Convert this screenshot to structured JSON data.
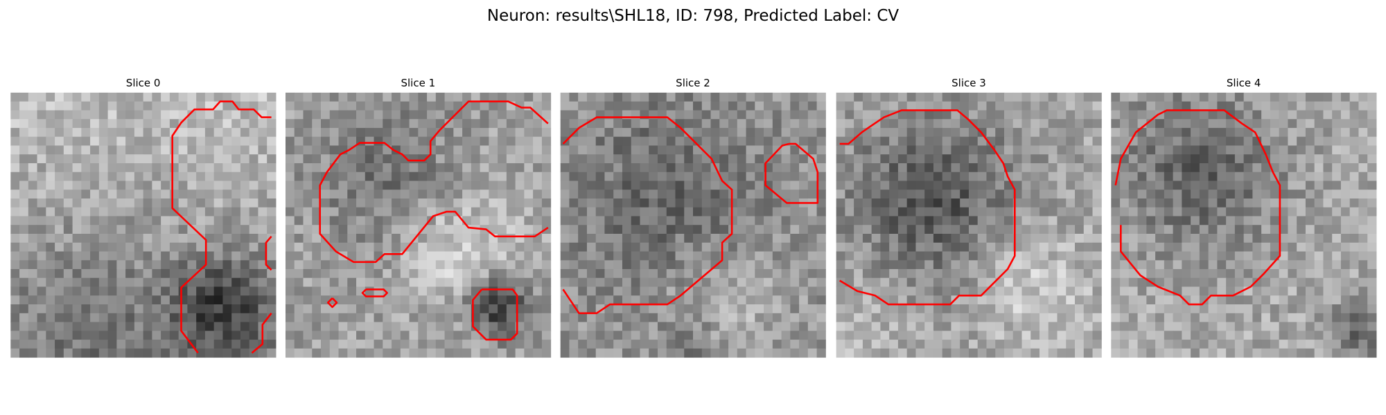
{
  "header": {
    "title": "Neuron: results\\SHL18, ID: 798, Predicted Label: CV"
  },
  "panels": [
    {
      "title": "Slice 0"
    },
    {
      "title": "Slice 1"
    },
    {
      "title": "Slice 2"
    },
    {
      "title": "Slice 3"
    },
    {
      "title": "Slice 4"
    }
  ]
}
